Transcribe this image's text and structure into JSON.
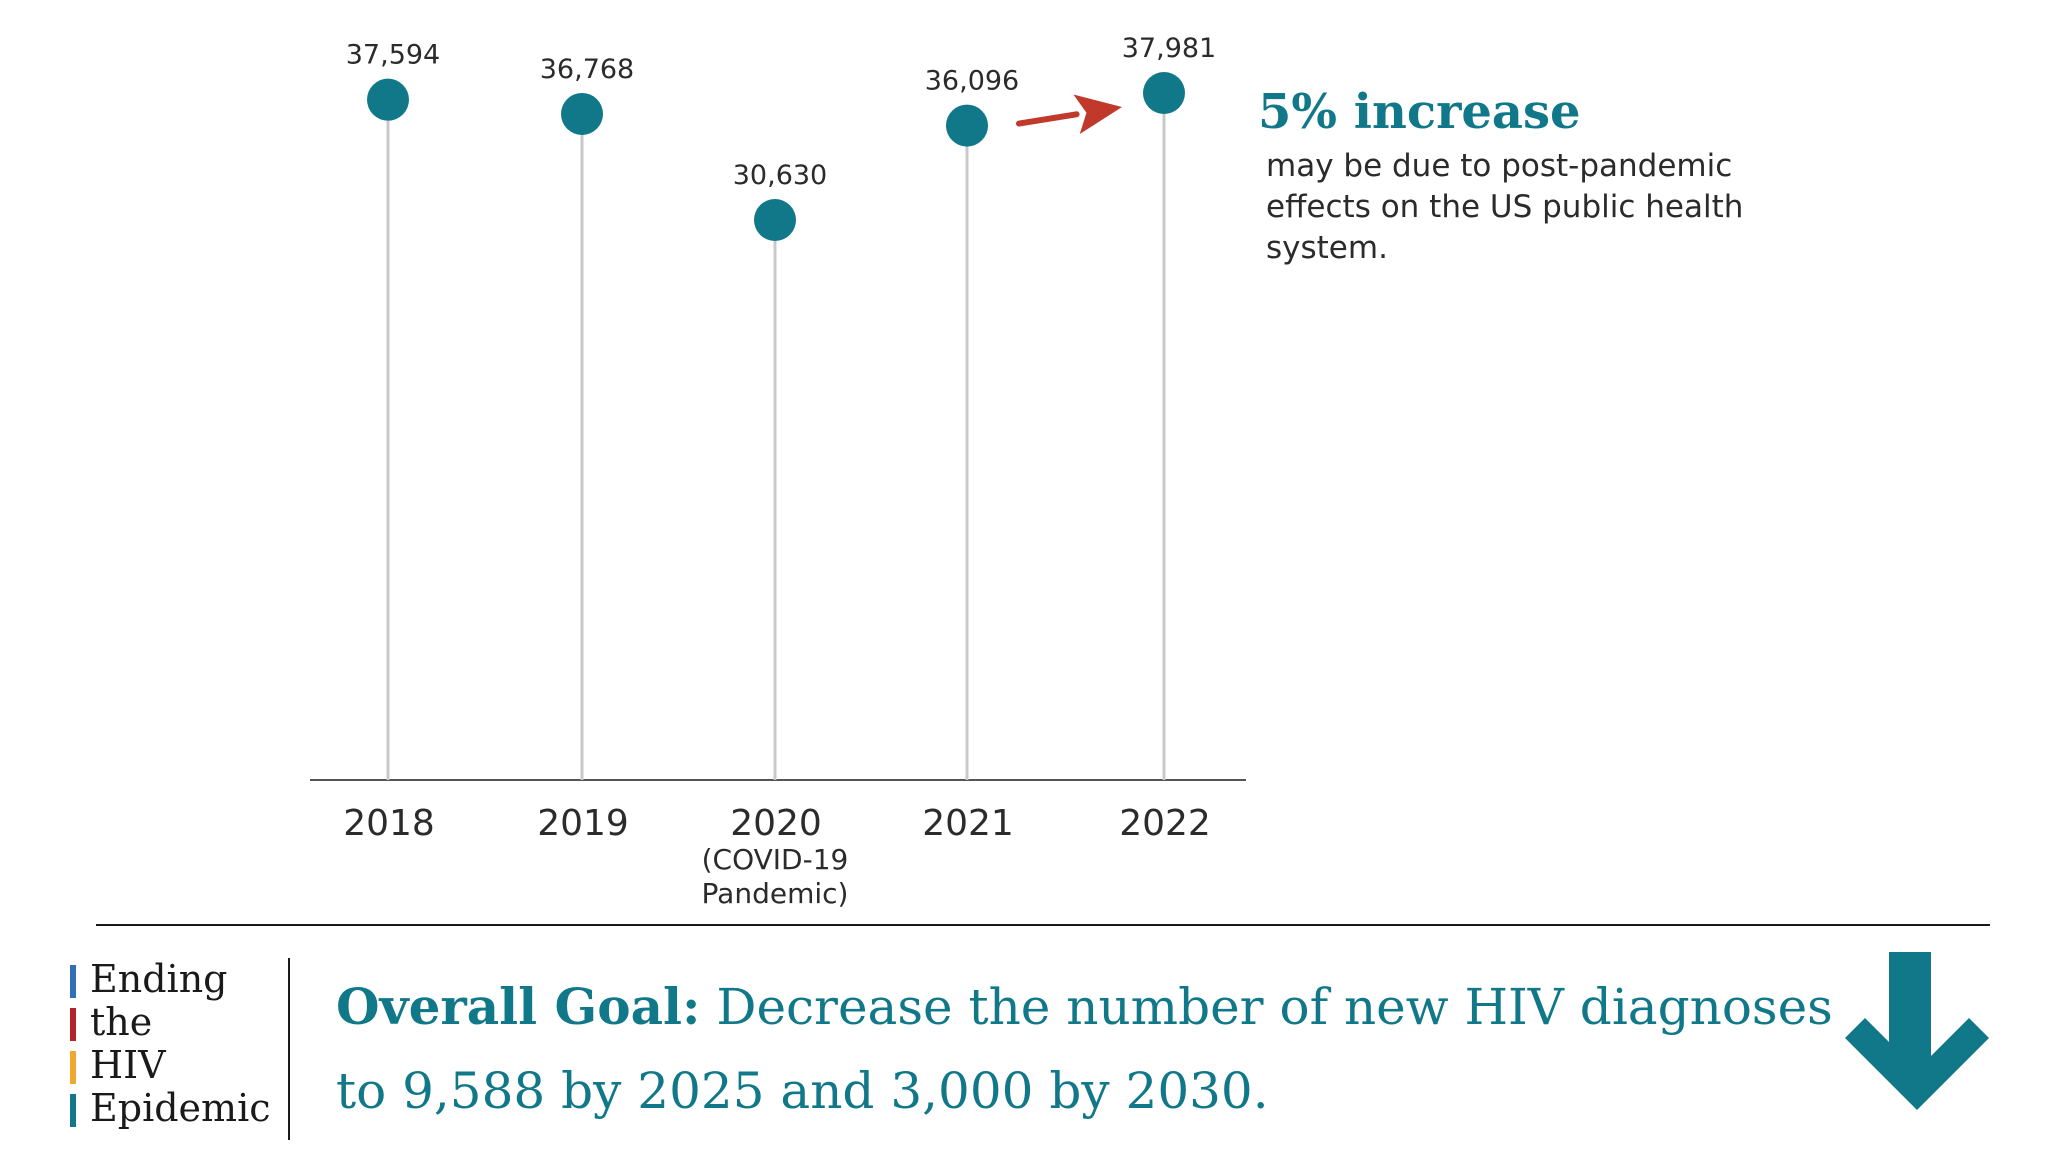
{
  "chart_data": {
    "type": "lollipop",
    "title": "",
    "xlabel": "",
    "ylabel": "",
    "categories": [
      "2018",
      "2019",
      "2020",
      "2021",
      "2022"
    ],
    "category_notes": [
      "",
      "",
      "(COVID-19 Pandemic)",
      "",
      ""
    ],
    "values": [
      37594,
      36768,
      30630,
      36096,
      37981
    ],
    "value_labels": [
      "37,594",
      "36,768",
      "30,630",
      "36,096",
      "37,981"
    ],
    "ylim": [
      0,
      38000
    ],
    "grid": false,
    "annotation": {
      "headline": "5% increase",
      "text": "may be due to post-pandemic effects on the US public health system.",
      "from": "2021",
      "to": "2022"
    }
  },
  "logo": {
    "lines": [
      "Ending",
      "the",
      "HIV",
      "Epidemic"
    ],
    "bar_colors": [
      "#2e6fb7",
      "#b3232a",
      "#f0a92e",
      "#11788a"
    ]
  },
  "goal": {
    "label": "Overall Goal:",
    "text": "Decrease the number of new HIV diagnoses to 9,588 by 2025 and 3,000 by 2030."
  },
  "icons": {
    "goal_arrow": "arrow-down-icon",
    "increase_arrow": "arrow-right-icon"
  },
  "colors": {
    "accent": "#11788a",
    "arrow": "#c0392b",
    "stem": "#c8c8c8",
    "axis": "#555555"
  }
}
